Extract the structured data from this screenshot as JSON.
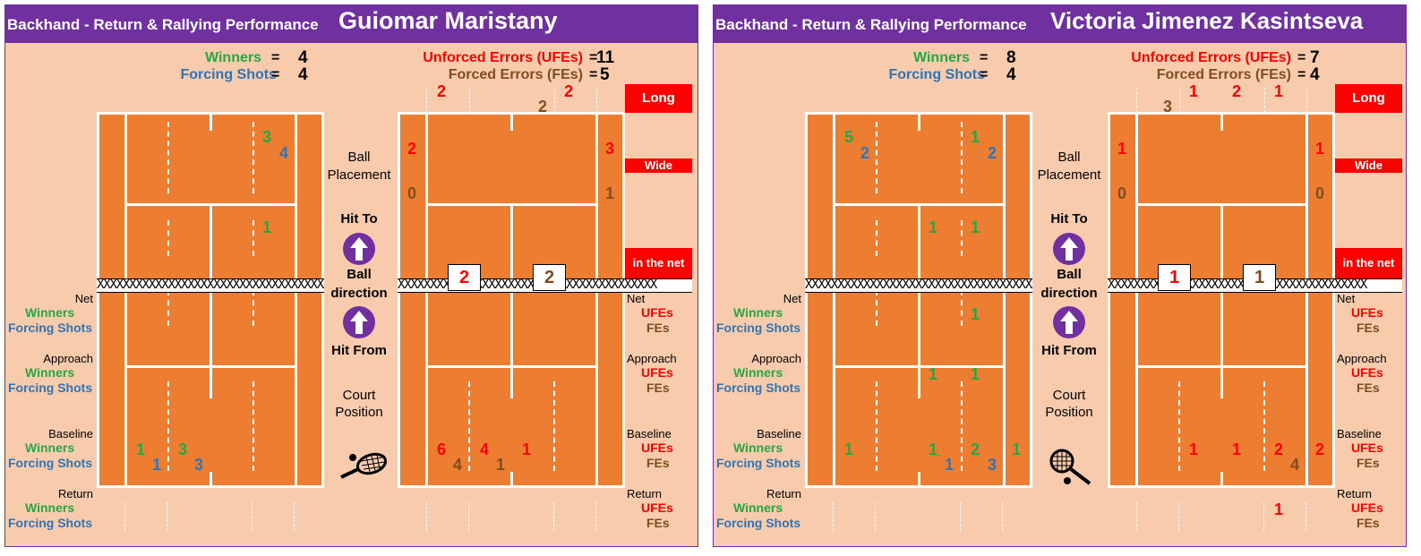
{
  "panels": [
    {
      "subtitle": "Backhand - Return & Rallying Performance",
      "player": "Guiomar Maristany",
      "winners_label": "Winners",
      "winners": "4",
      "forcing_label": "Forcing Shots",
      "forcing": "4",
      "ufe_label": "Unforced Errors (UFEs)",
      "ufe": "11",
      "fe_label": "Forced Errors (FEs)",
      "fe": "5",
      "eq": "=",
      "left_court": {
        "deep_g": "3",
        "deep_b": "4",
        "mid_g": "1",
        "base_g1": "1",
        "base_b1": "1",
        "base_g2": "3",
        "base_b2": "3"
      },
      "right_court": {
        "long1": "2",
        "long2": "2",
        "long_fe": "2",
        "wide_l_ufe": "2",
        "wide_l_fe": "0",
        "wide_r_ufe": "3",
        "wide_r_fe": "1",
        "net_ufe": "2",
        "net_fe": "2",
        "base_r1": "6",
        "base_br1": "4",
        "base_r2": "4",
        "base_br2": "1",
        "base_r3": "1"
      }
    },
    {
      "subtitle": "Backhand - Return & Rallying Performance",
      "player": "Victoria Jimenez Kasintseva",
      "winners_label": "Winners",
      "winners": "8",
      "forcing_label": "Forcing Shots",
      "forcing": "4",
      "ufe_label": "Unforced Errors (UFEs)",
      "ufe": "7",
      "fe_label": "Forced Errors (FEs)",
      "fe": "4",
      "eq": "=",
      "left_court": {
        "deep_g1": "5",
        "deep_b1": "2",
        "deep_g2": "1",
        "deep_b2": "2",
        "mid_g1": "1",
        "mid_g2": "1",
        "net_g": "1",
        "app_g1": "1",
        "app_g2": "1",
        "base_g1": "1",
        "base_g2": "1",
        "base_b1": "1",
        "base_g3": "2",
        "base_b2": "3",
        "base_g4": "1"
      },
      "right_court": {
        "long_fe": "3",
        "long1": "1",
        "long2": "2",
        "long3": "1",
        "wide_l_ufe": "1",
        "wide_l_fe": "0",
        "wide_r_ufe": "1",
        "wide_r_fe": "0",
        "net_ufe": "1",
        "net_fe": "1",
        "base_r1": "1",
        "base_r2": "1",
        "base_r3": "2",
        "base_br": "4",
        "base_r4": "2",
        "ret_r": "1"
      }
    }
  ],
  "labels": {
    "net": "Net",
    "approach": "Approach",
    "baseline": "Baseline",
    "return": "Return",
    "winners": "Winners",
    "forcing": "Forcing Shots",
    "ufes": "UFEs",
    "fes": "FEs",
    "long": "Long",
    "wide": "Wide",
    "in_net": "in the net",
    "ball": "Ball",
    "placement": "Placement",
    "hit_to": "Hit To",
    "ball2": "Ball",
    "direction": "direction",
    "hit_from": "Hit From",
    "court": "Court",
    "position": "Position"
  },
  "net_text": "XXXXXXXXXXXXXXXXXXXXXXXXXXXXXXXXXXXXXXXX",
  "colors": {
    "panel_bg": "#f8cbad",
    "header": "#7030a0",
    "court": "#ed7d31",
    "winners": "#22a845",
    "forcing": "#2f75b5",
    "ufe": "#ff0000",
    "fe": "#7f4d1e"
  },
  "icons": {
    "arrow": "up-arrow-icon",
    "racket_left": "tennis-racket-icon",
    "racket_right": "tennis-racket-icon"
  }
}
